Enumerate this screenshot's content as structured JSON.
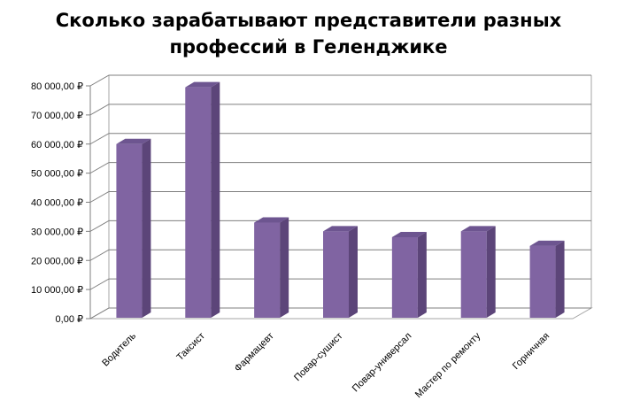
{
  "chart_data": {
    "type": "bar",
    "title_lines": [
      "Сколько зарабатывают представители разных",
      "профессий в Геленджике"
    ],
    "categories": [
      "Водитель",
      "Таксист",
      "Фармацевт",
      "Повар-сушист",
      "Повар-универсал",
      "Мастер по ремонту",
      "Горничная"
    ],
    "values": [
      60000,
      79500,
      33000,
      30000,
      28000,
      30000,
      25000
    ],
    "ylim": [
      0,
      80000
    ],
    "yticks": [
      0,
      10000,
      20000,
      30000,
      40000,
      50000,
      60000,
      70000,
      80000
    ],
    "ytick_labels": [
      "0,00 ₽",
      "10 000,00 ₽",
      "20 000,00 ₽",
      "30 000,00 ₽",
      "40 000,00 ₽",
      "50 000,00 ₽",
      "60 000,00 ₽",
      "70 000,00 ₽",
      "80 000,00 ₽"
    ],
    "xlabel": "",
    "ylabel": "",
    "grid": true,
    "bar_color": "#8064a2"
  }
}
